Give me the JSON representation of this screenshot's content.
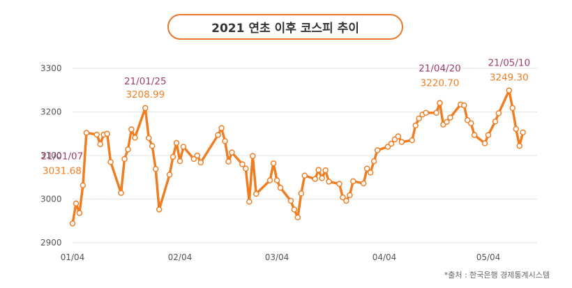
{
  "title": "2021 연초 이후 코스피 추이",
  "source": "*출처 : 한국은행 경제통계시스템",
  "colors": {
    "line": "#ef7d22",
    "dot_fill": "#ffffff",
    "date_label": "#9b3d6e",
    "value_label": "#ef7d22",
    "grid": "#e6e6e6",
    "axis_text": "#555555"
  },
  "chart_data": {
    "type": "line",
    "title": "2021 연초 이후 코스피 추이",
    "xlabel": "",
    "ylabel": "",
    "ylim": [
      2900,
      3300
    ],
    "yticks": [
      2900,
      3000,
      3100,
      3200,
      3300
    ],
    "xticks": [
      {
        "label": "01/04",
        "x": "2021-01-04"
      },
      {
        "label": "02/04",
        "x": "2021-02-04"
      },
      {
        "label": "03/04",
        "x": "2021-03-04"
      },
      {
        "label": "04/04",
        "x": "2021-04-04"
      },
      {
        "label": "05/04",
        "x": "2021-05-04"
      }
    ],
    "grid": "horizontal",
    "series": [
      {
        "x": [
          "2021-01-04",
          "2021-01-05",
          "2021-01-06",
          "2021-01-07",
          "2021-01-08",
          "2021-01-11",
          "2021-01-12",
          "2021-01-13",
          "2021-01-14",
          "2021-01-15",
          "2021-01-18",
          "2021-01-19",
          "2021-01-20",
          "2021-01-21",
          "2021-01-22",
          "2021-01-25",
          "2021-01-26",
          "2021-01-27",
          "2021-01-28",
          "2021-01-29",
          "2021-02-01",
          "2021-02-02",
          "2021-02-03",
          "2021-02-04",
          "2021-02-05",
          "2021-02-08",
          "2021-02-09",
          "2021-02-10",
          "2021-02-15",
          "2021-02-16",
          "2021-02-17",
          "2021-02-18",
          "2021-02-19",
          "2021-02-22",
          "2021-02-23",
          "2021-02-24",
          "2021-02-25",
          "2021-02-26",
          "2021-03-02",
          "2021-03-03",
          "2021-03-04",
          "2021-03-05",
          "2021-03-08",
          "2021-03-09",
          "2021-03-10",
          "2021-03-11",
          "2021-03-12",
          "2021-03-15",
          "2021-03-16",
          "2021-03-17",
          "2021-03-18",
          "2021-03-19",
          "2021-03-22",
          "2021-03-23",
          "2021-03-24",
          "2021-03-25",
          "2021-03-26",
          "2021-03-29",
          "2021-03-30",
          "2021-03-31",
          "2021-04-01",
          "2021-04-02",
          "2021-04-05",
          "2021-04-06",
          "2021-04-07",
          "2021-04-08",
          "2021-04-09",
          "2021-04-12",
          "2021-04-13",
          "2021-04-14",
          "2021-04-15",
          "2021-04-16",
          "2021-04-19",
          "2021-04-20",
          "2021-04-21",
          "2021-04-22",
          "2021-04-23",
          "2021-04-26",
          "2021-04-27",
          "2021-04-28",
          "2021-04-29",
          "2021-04-30",
          "2021-05-03",
          "2021-05-04",
          "2021-05-06",
          "2021-05-07",
          "2021-05-10",
          "2021-05-11",
          "2021-05-12",
          "2021-05-13",
          "2021-05-14"
        ],
        "values": [
          2944,
          2990,
          2968,
          3031.68,
          3152,
          3148,
          3126,
          3148,
          3150,
          3085,
          3014,
          3092,
          3114,
          3160,
          3141,
          3208.99,
          3140,
          3122,
          3069,
          2976,
          3056,
          3097,
          3129,
          3087,
          3120,
          3092,
          3100,
          3084,
          3147,
          3163,
          3133,
          3086,
          3107,
          3080,
          3070,
          2994,
          3099,
          3012,
          3043,
          3082,
          3043,
          3026,
          2996,
          2976,
          2958,
          3013,
          3054,
          3046,
          3067,
          3048,
          3066,
          3040,
          3035,
          3004,
          2996,
          3009,
          3041,
          3036,
          3070,
          3061,
          3087,
          3112,
          3120,
          3127,
          3137,
          3144,
          3131,
          3135,
          3169,
          3185,
          3194,
          3198,
          3198,
          3220.7,
          3171,
          3177,
          3187,
          3217,
          3215,
          3181,
          3174,
          3147,
          3128,
          3147,
          3178,
          3197,
          3249.3,
          3209,
          3161,
          3122,
          3153
        ]
      }
    ],
    "annotations": [
      {
        "x": "2021-01-07",
        "date": "21/01/07",
        "value": "3031.68"
      },
      {
        "x": "2021-01-25",
        "date": "21/01/25",
        "value": "3208.99"
      },
      {
        "x": "2021-04-20",
        "date": "21/04/20",
        "value": "3220.70"
      },
      {
        "x": "2021-05-10",
        "date": "21/05/10",
        "value": "3249.30"
      }
    ]
  }
}
